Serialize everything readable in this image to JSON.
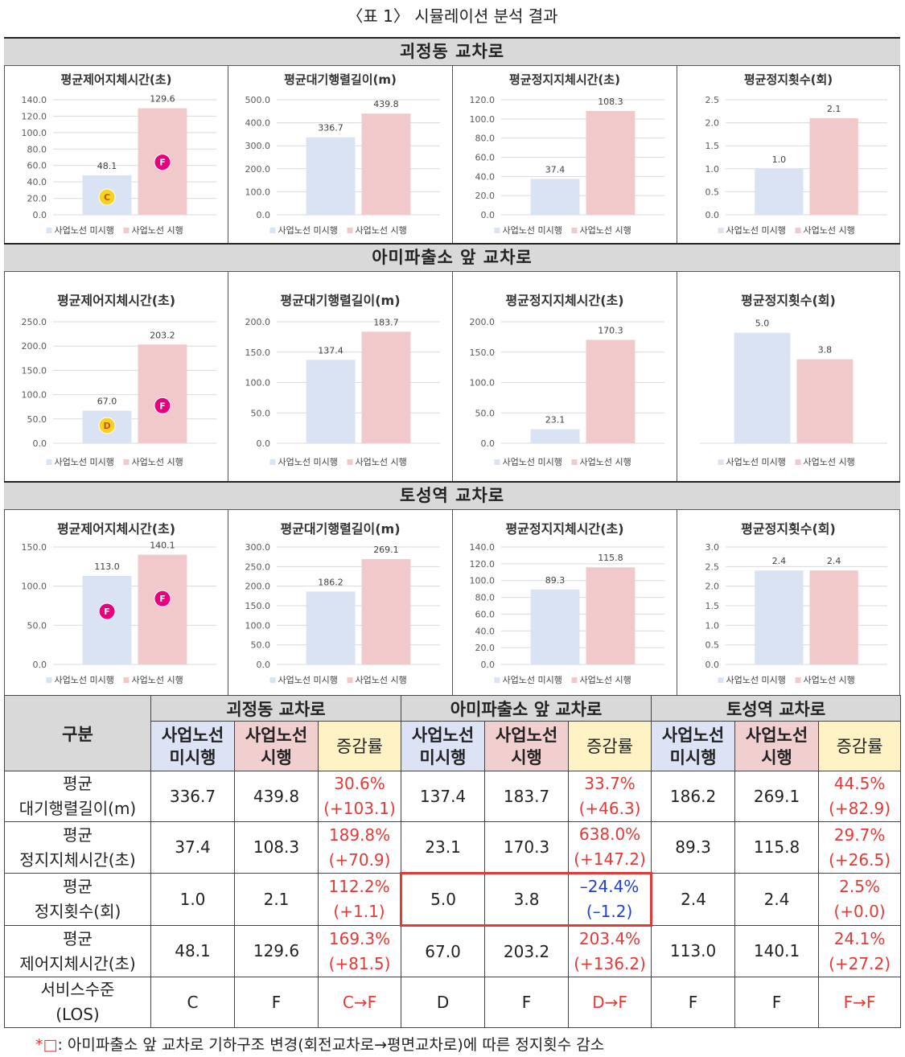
{
  "caption": "〈표 1〉 시뮬레이션 분석 결과",
  "legend": {
    "before": "사업노선 미시행",
    "after": "사업노선 시행"
  },
  "colors": {
    "before": "#dae3f3",
    "after": "#f2c9cb",
    "grid": "#d9d9d9",
    "los_pink": "#e6007e",
    "los_yellow": "#f7d21f",
    "red": "#e53935",
    "blue": "#1f3fd8"
  },
  "sections": [
    {
      "title": "괴정동 교차로"
    },
    {
      "title": "아미파출소 앞 교차로"
    },
    {
      "title": "토성역 교차로"
    }
  ],
  "chart_data": [
    {
      "type": "bar",
      "section": "괴정동 교차로",
      "title": "평균제어지체시간(초)",
      "categories": [
        "사업노선 미시행",
        "사업노선 시행"
      ],
      "values": [
        48.1,
        129.6
      ],
      "ylim": [
        0,
        140
      ],
      "yticks": [
        "0.0",
        "20.0",
        "40.0",
        "60.0",
        "80.0",
        "100.0",
        "120.0",
        "140.0"
      ],
      "data_labels": [
        "48.1",
        "129.6"
      ],
      "los": [
        "C",
        "F"
      ]
    },
    {
      "type": "bar",
      "section": "괴정동 교차로",
      "title": "평균대기행렬길이(m)",
      "categories": [
        "사업노선 미시행",
        "사업노선 시행"
      ],
      "values": [
        336.7,
        439.8
      ],
      "ylim": [
        0,
        500
      ],
      "yticks": [
        "0.0",
        "100.0",
        "200.0",
        "300.0",
        "400.0",
        "500.0"
      ],
      "data_labels": [
        "336.7",
        "439.8"
      ],
      "los": []
    },
    {
      "type": "bar",
      "section": "괴정동 교차로",
      "title": "평균정지지체시간(초)",
      "categories": [
        "사업노선 미시행",
        "사업노선 시행"
      ],
      "values": [
        37.4,
        108.3
      ],
      "ylim": [
        0,
        120
      ],
      "yticks": [
        "0.0",
        "20.0",
        "40.0",
        "60.0",
        "80.0",
        "100.0",
        "120.0"
      ],
      "data_labels": [
        "37.4",
        "108.3"
      ],
      "los": []
    },
    {
      "type": "bar",
      "section": "괴정동 교차로",
      "title": "평균정지횟수(회)",
      "categories": [
        "사업노선 미시행",
        "사업노선 시행"
      ],
      "values": [
        1.0,
        2.1
      ],
      "ylim": [
        0,
        2.5
      ],
      "yticks": [
        "0.0",
        "0.5",
        "1.0",
        "1.5",
        "2.0",
        "2.5"
      ],
      "data_labels": [
        "1.0",
        "2.1"
      ],
      "los": []
    },
    {
      "type": "bar",
      "section": "아미파출소 앞 교차로",
      "title": "평균제어지체시간(초)",
      "categories": [
        "사업노선 미시행",
        "사업노선 시행"
      ],
      "values": [
        67.0,
        203.2
      ],
      "ylim": [
        0,
        250
      ],
      "yticks": [
        "0.0",
        "50.0",
        "100.0",
        "150.0",
        "200.0",
        "250.0"
      ],
      "data_labels": [
        "67.0",
        "203.2"
      ],
      "los": [
        "D",
        "F"
      ]
    },
    {
      "type": "bar",
      "section": "아미파출소 앞 교차로",
      "title": "평균대기행렬길이(m)",
      "categories": [
        "사업노선 미시행",
        "사업노선 시행"
      ],
      "values": [
        137.4,
        183.7
      ],
      "ylim": [
        0,
        200
      ],
      "yticks": [
        "0.0",
        "50.0",
        "100.0",
        "150.0",
        "200.0"
      ],
      "data_labels": [
        "137.4",
        "183.7"
      ],
      "los": []
    },
    {
      "type": "bar",
      "section": "아미파출소 앞 교차로",
      "title": "평균정지지체시간(초)",
      "categories": [
        "사업노선 미시행",
        "사업노선 시행"
      ],
      "values": [
        23.1,
        170.3
      ],
      "ylim": [
        0,
        200
      ],
      "yticks": [
        "0.0",
        "50.0",
        "100.0",
        "150.0",
        "200.0"
      ],
      "data_labels": [
        "23.1",
        "170.3"
      ],
      "los": []
    },
    {
      "type": "bar",
      "section": "아미파출소 앞 교차로",
      "title": "평균정지횟수(회)",
      "categories": [
        "사업노선 미시행",
        "사업노선 시행"
      ],
      "values": [
        5.0,
        3.8
      ],
      "ylim": [
        0,
        5.5
      ],
      "yticks": [],
      "data_labels": [
        "5.0",
        "3.8"
      ],
      "los": []
    },
    {
      "type": "bar",
      "section": "토성역 교차로",
      "title": "평균제어지체시간(초)",
      "categories": [
        "사업노선 미시행",
        "사업노선 시행"
      ],
      "values": [
        113.0,
        140.1
      ],
      "ylim": [
        0,
        150
      ],
      "yticks": [
        "0.0",
        "50.0",
        "100.0",
        "150.0"
      ],
      "data_labels": [
        "113.0",
        "140.1"
      ],
      "los": [
        "F",
        "F"
      ]
    },
    {
      "type": "bar",
      "section": "토성역 교차로",
      "title": "평균대기행렬길이(m)",
      "categories": [
        "사업노선 미시행",
        "사업노선 시행"
      ],
      "values": [
        186.2,
        269.1
      ],
      "ylim": [
        0,
        300
      ],
      "yticks": [
        "0.0",
        "50.0",
        "100.0",
        "150.0",
        "200.0",
        "250.0",
        "300.0"
      ],
      "data_labels": [
        "186.2",
        "269.1"
      ],
      "los": []
    },
    {
      "type": "bar",
      "section": "토성역 교차로",
      "title": "평균정지지체시간(초)",
      "categories": [
        "사업노선 미시행",
        "사업노선 시행"
      ],
      "values": [
        89.3,
        115.8
      ],
      "ylim": [
        0,
        140
      ],
      "yticks": [
        "0.0",
        "20.0",
        "40.0",
        "60.0",
        "80.0",
        "100.0",
        "120.0",
        "140.0"
      ],
      "data_labels": [
        "89.3",
        "115.8"
      ],
      "los": []
    },
    {
      "type": "bar",
      "section": "토성역 교차로",
      "title": "평균정지횟수(회)",
      "categories": [
        "사업노선 미시행",
        "사업노선 시행"
      ],
      "values": [
        2.4,
        2.4
      ],
      "ylim": [
        0,
        3.0
      ],
      "yticks": [
        "0.0",
        "0.5",
        "1.0",
        "1.5",
        "2.0",
        "2.5",
        "3.0"
      ],
      "data_labels": [
        "2.4",
        "2.4"
      ],
      "los": []
    }
  ],
  "table": {
    "gubun": "구분",
    "groups": [
      "괴정동 교차로",
      "아미파출소 앞 교차로",
      "토성역 교차로"
    ],
    "sub_before": [
      "사업노선",
      "미시행"
    ],
    "sub_after": [
      "사업노선",
      "시행"
    ],
    "sub_rate": "증감률",
    "rows": [
      {
        "label": [
          "평균",
          "대기행렬길이(m)"
        ],
        "cells": [
          {
            "before": "336.7",
            "after": "439.8",
            "rate": [
              "30.6%",
              "(+103.1)"
            ]
          },
          {
            "before": "137.4",
            "after": "183.7",
            "rate": [
              "33.7%",
              "(+46.3)"
            ]
          },
          {
            "before": "186.2",
            "after": "269.1",
            "rate": [
              "44.5%",
              "(+82.9)"
            ]
          }
        ]
      },
      {
        "label": [
          "평균",
          "정지지체시간(초)"
        ],
        "cells": [
          {
            "before": "37.4",
            "after": "108.3",
            "rate": [
              "189.8%",
              "(+70.9)"
            ]
          },
          {
            "before": "23.1",
            "after": "170.3",
            "rate": [
              "638.0%",
              "(+147.2)"
            ]
          },
          {
            "before": "89.3",
            "after": "115.8",
            "rate": [
              "29.7%",
              "(+26.5)"
            ]
          }
        ]
      },
      {
        "label": [
          "평균",
          "정지횟수(회)"
        ],
        "cells": [
          {
            "before": "1.0",
            "after": "2.1",
            "rate": [
              "112.2%",
              "(+1.1)"
            ]
          },
          {
            "before": "5.0",
            "after": "3.8",
            "rate": [
              "–24.4%",
              "(–1.2)"
            ]
          },
          {
            "before": "2.4",
            "after": "2.4",
            "rate": [
              "2.5%",
              "(+0.0)"
            ]
          }
        ]
      },
      {
        "label": [
          "평균",
          "제어지체시간(초)"
        ],
        "cells": [
          {
            "before": "48.1",
            "after": "129.6",
            "rate": [
              "169.3%",
              "(+81.5)"
            ]
          },
          {
            "before": "67.0",
            "after": "203.2",
            "rate": [
              "203.4%",
              "(+136.2)"
            ]
          },
          {
            "before": "113.0",
            "after": "140.1",
            "rate": [
              "24.1%",
              "(+27.2)"
            ]
          }
        ]
      },
      {
        "label": [
          "서비스수준",
          "(LOS)"
        ],
        "cells": [
          {
            "before": "C",
            "after": "F",
            "rate": [
              "C→F"
            ]
          },
          {
            "before": "D",
            "after": "F",
            "rate": [
              "D→F"
            ]
          },
          {
            "before": "F",
            "after": "F",
            "rate": [
              "F→F"
            ]
          }
        ]
      }
    ]
  },
  "footnote": {
    "mark": "*□",
    "text": ":  아미파출소 앞 교차로 기하구조 변경(회전교차로→평면교차로)에 따른 정지횟수 감소"
  }
}
